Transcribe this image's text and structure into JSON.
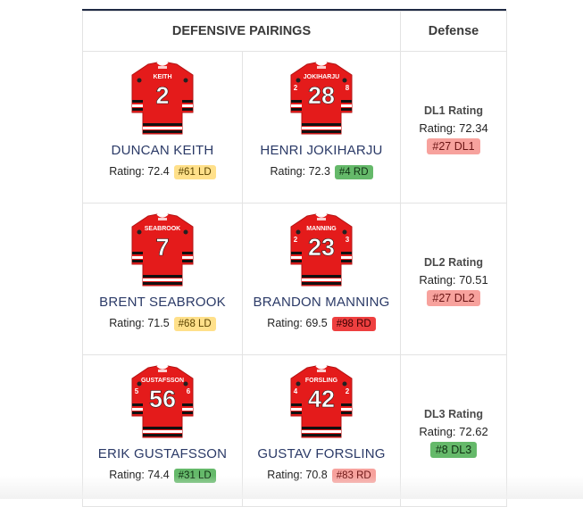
{
  "header": {
    "pairings": "DEFENSIVE PAIRINGS",
    "defense": "Defense"
  },
  "pairs": [
    {
      "left": {
        "name": "DUNCAN KEITH",
        "jersey_name": "KEITH",
        "number": "2",
        "rating_label": "Rating: 72.4",
        "badge": "#61 LD",
        "badge_color": "yellow"
      },
      "right": {
        "name": "HENRI JOKIHARJU",
        "jersey_name": "JOKIHARJU",
        "number": "28",
        "rating_label": "Rating: 72.3",
        "badge": "#4 RD",
        "badge_color": "green"
      },
      "dl": {
        "title": "DL1 Rating",
        "rating": "Rating: 72.34",
        "badge": "#27 DL1",
        "badge_color": "salmon"
      }
    },
    {
      "left": {
        "name": "BRENT SEABROOK",
        "jersey_name": "SEABROOK",
        "number": "7",
        "rating_label": "Rating: 71.5",
        "badge": "#68 LD",
        "badge_color": "yellow"
      },
      "right": {
        "name": "BRANDON MANNING",
        "jersey_name": "MANNING",
        "number": "23",
        "rating_label": "Rating: 69.5",
        "badge": "#98 RD",
        "badge_color": "red"
      },
      "dl": {
        "title": "DL2 Rating",
        "rating": "Rating: 70.51",
        "badge": "#27 DL2",
        "badge_color": "salmon"
      }
    },
    {
      "left": {
        "name": "ERIK GUSTAFSSON",
        "jersey_name": "GUSTAFSSON",
        "number": "56",
        "rating_label": "Rating: 74.4",
        "badge": "#31 LD",
        "badge_color": "green"
      },
      "right": {
        "name": "GUSTAV FORSLING",
        "jersey_name": "FORSLING",
        "number": "42",
        "rating_label": "Rating: 70.8",
        "badge": "#83 RD",
        "badge_color": "salmon"
      },
      "dl": {
        "title": "DL3 Rating",
        "rating": "Rating: 72.62",
        "badge": "#8 DL3",
        "badge_color": "green"
      }
    }
  ]
}
